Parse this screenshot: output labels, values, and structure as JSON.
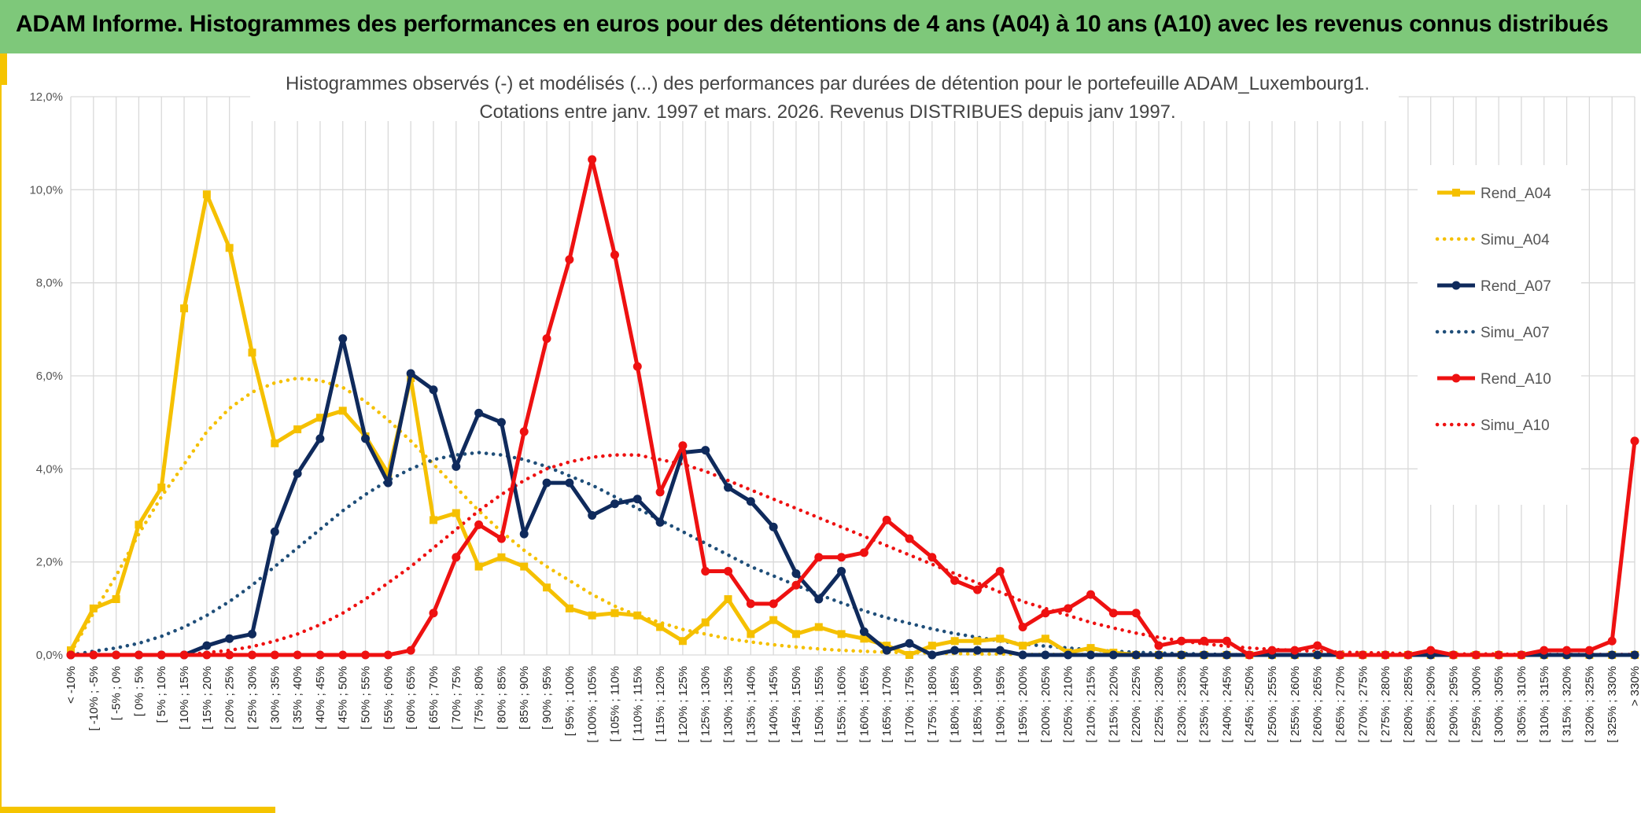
{
  "header": {
    "title": "ADAM Informe. Histogrammes des performances en euros pour des détentions de 4 ans (A04) à 10 ans (A10) avec les revenus connus distribués"
  },
  "colors": {
    "header_bg": "#7ec87a",
    "accent": "#f5c400",
    "a04": "#f5c000",
    "a07": "#0f2a5c",
    "a10": "#ee1111",
    "grid": "#d9d9d9"
  },
  "chart_data": {
    "type": "line",
    "title_line1": "Histogrammes observés (-) et modélisés (...) des performances par durées de détention pour le portefeuille ADAM_Luxembourg1.",
    "title_line2": "Cotations entre janv. 1997 et mars. 2026. Revenus DISTRIBUES depuis janv 1997.",
    "ylim": [
      0,
      12
    ],
    "yticks": [
      0,
      2,
      4,
      6,
      8,
      10,
      12
    ],
    "ytick_labels": [
      "0,0%",
      "2,0%",
      "4,0%",
      "6,0%",
      "8,0%",
      "10,0%",
      "12,0%"
    ],
    "legend_position": "right",
    "categories": [
      "< -10%",
      "[ -10% ; -5%",
      "[ -5% ; 0%",
      "[ 0% ; 5%",
      "[ 5% ; 10%",
      "[ 10% ; 15%",
      "[ 15% ; 20%",
      "[ 20% ; 25%",
      "[ 25% ; 30%",
      "[ 30% ; 35%",
      "[ 35% ; 40%",
      "[ 40% ; 45%",
      "[ 45% ; 50%",
      "[ 50% ; 55%",
      "[ 55% ; 60%",
      "[ 60% ; 65%",
      "[ 65% ; 70%",
      "[ 70% ; 75%",
      "[ 75% ; 80%",
      "[ 80% ; 85%",
      "[ 85% ; 90%",
      "[ 90% ; 95%",
      "[ 95% ; 100%",
      "[ 100% ; 105%",
      "[ 105% ; 110%",
      "[ 110% ; 115%",
      "[ 115% ; 120%",
      "[ 120% ; 125%",
      "[ 125% ; 130%",
      "[ 130% ; 135%",
      "[ 135% ; 140%",
      "[ 140% ; 145%",
      "[ 145% ; 150%",
      "[ 150% ; 155%",
      "[ 155% ; 160%",
      "[ 160% ; 165%",
      "[ 165% ; 170%",
      "[ 170% ; 175%",
      "[ 175% ; 180%",
      "[ 180% ; 185%",
      "[ 185% ; 190%",
      "[ 190% ; 195%",
      "[ 195% ; 200%",
      "[ 200% ; 205%",
      "[ 205% ; 210%",
      "[ 210% ; 215%",
      "[ 215% ; 220%",
      "[ 220% ; 225%",
      "[ 225% ; 230%",
      "[ 230% ; 235%",
      "[ 235% ; 240%",
      "[ 240% ; 245%",
      "[ 245% ; 250%",
      "[ 250% ; 255%",
      "[ 255% ; 260%",
      "[ 260% ; 265%",
      "[ 265% ; 270%",
      "[ 270% ; 275%",
      "[ 275% ; 280%",
      "[ 280% ; 285%",
      "[ 285% ; 290%",
      "[ 290% ; 295%",
      "[ 295% ; 300%",
      "[ 300% ; 305%",
      "[ 305% ; 310%",
      "[ 310% ; 315%",
      "[ 315% ; 320%",
      "[ 320% ; 325%",
      "[ 325% ; 330%",
      "> 330%"
    ],
    "series": [
      {
        "name": "Rend_A04",
        "color": "#f5c000",
        "style": "solid",
        "marker": "square",
        "values": [
          0.1,
          1.0,
          1.2,
          2.8,
          3.6,
          7.45,
          9.9,
          8.75,
          6.5,
          4.55,
          4.85,
          5.1,
          5.25,
          4.7,
          3.9,
          5.95,
          2.9,
          3.05,
          1.9,
          2.1,
          1.9,
          1.45,
          1.0,
          0.85,
          0.9,
          0.85,
          0.6,
          0.3,
          0.7,
          1.2,
          0.45,
          0.75,
          0.45,
          0.6,
          0.45,
          0.35,
          0.2,
          0.0,
          0.2,
          0.3,
          0.3,
          0.35,
          0.2,
          0.35,
          0.05,
          0.15,
          0.05,
          0,
          0,
          0,
          0,
          0,
          0,
          0,
          0,
          0,
          0,
          0,
          0,
          0,
          0,
          0,
          0,
          0,
          0,
          0,
          0,
          0,
          0,
          0
        ]
      },
      {
        "name": "Simu_A04",
        "color": "#f5c000",
        "style": "dotted",
        "values": [
          0.05,
          0.9,
          1.7,
          2.6,
          3.4,
          4.1,
          4.8,
          5.3,
          5.65,
          5.85,
          5.95,
          5.9,
          5.75,
          5.45,
          5.05,
          4.6,
          4.1,
          3.6,
          3.1,
          2.65,
          2.25,
          1.9,
          1.6,
          1.3,
          1.05,
          0.85,
          0.7,
          0.55,
          0.45,
          0.35,
          0.28,
          0.22,
          0.17,
          0.13,
          0.1,
          0.08,
          0.06,
          0.05,
          0.04,
          0.03,
          0.02,
          0.02,
          0.01,
          0.01,
          0.01,
          0.01,
          0.01,
          0,
          0,
          0,
          0,
          0,
          0,
          0,
          0,
          0,
          0,
          0,
          0,
          0,
          0,
          0,
          0,
          0,
          0,
          0,
          0,
          0,
          0,
          0
        ]
      },
      {
        "name": "Rend_A07",
        "color": "#0f2a5c",
        "style": "solid",
        "marker": "circle",
        "values": [
          0,
          0,
          0,
          0,
          0,
          0,
          0.2,
          0.35,
          0.45,
          2.65,
          3.9,
          4.65,
          6.8,
          4.65,
          3.7,
          6.05,
          5.7,
          4.05,
          5.2,
          5.0,
          2.6,
          3.7,
          3.7,
          3.0,
          3.25,
          3.35,
          2.85,
          4.35,
          4.4,
          3.6,
          3.3,
          2.75,
          1.75,
          1.2,
          1.8,
          0.5,
          0.1,
          0.25,
          0.0,
          0.1,
          0.1,
          0.1,
          0.0,
          0.0,
          0.0,
          0.0,
          0.0,
          0,
          0,
          0,
          0,
          0,
          0,
          0,
          0,
          0,
          0,
          0,
          0,
          0,
          0,
          0,
          0,
          0,
          0,
          0,
          0,
          0,
          0,
          0
        ]
      },
      {
        "name": "Simu_A07",
        "color": "#1f4e79",
        "style": "dotted",
        "values": [
          0.0,
          0.08,
          0.15,
          0.25,
          0.4,
          0.6,
          0.85,
          1.15,
          1.5,
          1.9,
          2.3,
          2.7,
          3.1,
          3.45,
          3.75,
          4.0,
          4.2,
          4.3,
          4.35,
          4.3,
          4.2,
          4.05,
          3.85,
          3.65,
          3.4,
          3.15,
          2.9,
          2.65,
          2.4,
          2.15,
          1.9,
          1.7,
          1.5,
          1.3,
          1.12,
          0.95,
          0.8,
          0.68,
          0.56,
          0.46,
          0.38,
          0.3,
          0.24,
          0.19,
          0.15,
          0.11,
          0.08,
          0.06,
          0.04,
          0.03,
          0.02,
          0.01,
          0,
          0,
          0,
          0,
          0,
          0,
          0,
          0,
          0,
          0,
          0,
          0,
          0,
          0,
          0,
          0,
          0,
          0
        ]
      },
      {
        "name": "Rend_A10",
        "color": "#ee1111",
        "style": "solid",
        "marker": "circle",
        "values": [
          0,
          0,
          0,
          0,
          0,
          0,
          0,
          0,
          0,
          0,
          0,
          0,
          0,
          0,
          0,
          0.1,
          0.9,
          2.1,
          2.8,
          2.5,
          4.8,
          6.8,
          8.5,
          10.65,
          8.6,
          6.2,
          3.5,
          4.5,
          1.8,
          1.8,
          1.1,
          1.1,
          1.5,
          2.1,
          2.1,
          2.2,
          2.9,
          2.5,
          2.1,
          1.6,
          1.4,
          1.8,
          0.6,
          0.9,
          1.0,
          1.3,
          0.9,
          0.9,
          0.2,
          0.3,
          0.3,
          0.3,
          0.0,
          0.1,
          0.1,
          0.2,
          0.0,
          0.0,
          0.0,
          0.0,
          0.1,
          0.0,
          0.0,
          0.0,
          0.0,
          0.1,
          0.1,
          0.1,
          0.3,
          4.6
        ]
      },
      {
        "name": "Simu_A10",
        "color": "#ee1111",
        "style": "dotted",
        "values": [
          0,
          0,
          0,
          0,
          0,
          0,
          0.05,
          0.1,
          0.18,
          0.3,
          0.45,
          0.65,
          0.9,
          1.2,
          1.55,
          1.9,
          2.3,
          2.7,
          3.1,
          3.45,
          3.75,
          4.0,
          4.15,
          4.25,
          4.3,
          4.3,
          4.2,
          4.1,
          3.95,
          3.75,
          3.55,
          3.35,
          3.15,
          2.95,
          2.75,
          2.55,
          2.35,
          2.15,
          1.95,
          1.75,
          1.55,
          1.35,
          1.15,
          1.0,
          0.85,
          0.7,
          0.58,
          0.47,
          0.38,
          0.3,
          0.24,
          0.19,
          0.15,
          0.12,
          0.1,
          0.08,
          0.06,
          0.05,
          0.04,
          0.03,
          0.03,
          0.02,
          0.02,
          0.02,
          0.01,
          0.01,
          0.01,
          0.01,
          0.01,
          0.01
        ]
      }
    ]
  }
}
